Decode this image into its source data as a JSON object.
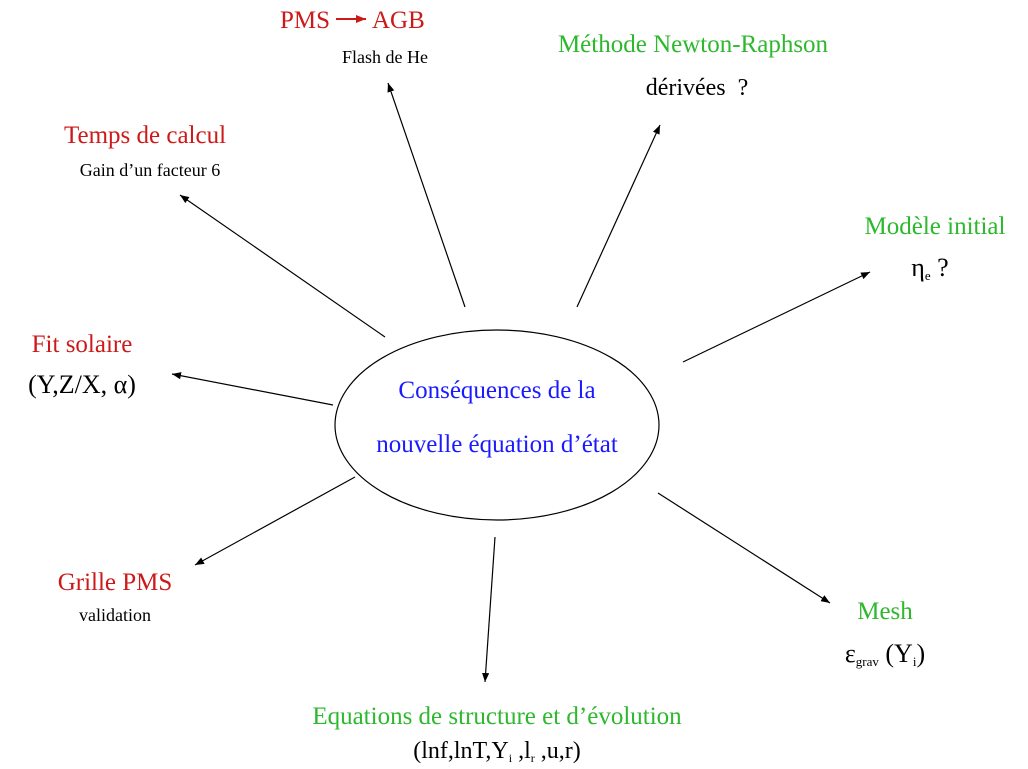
{
  "center": [
    "Conséquences de la",
    "nouvelle équation d’état"
  ],
  "nodes": [
    {
      "title": [
        "PMS",
        "AGB"
      ],
      "subtitle": [
        {
          "text": "Flash de He"
        }
      ]
    },
    {
      "title": [
        "Méthode Newton-Raphson"
      ],
      "subtitle": [
        {
          "text": "dérivées  ?"
        }
      ]
    },
    {
      "title": [
        "Temps de calcul"
      ],
      "subtitle": [
        {
          "text": "Gain d’un facteur 6"
        }
      ]
    },
    {
      "title": [
        "Modèle initial"
      ],
      "subtitle": [
        {
          "text": "η"
        },
        {
          "text": "e",
          "sub": true
        },
        {
          "text": " ?"
        }
      ]
    },
    {
      "title": [
        "Fit solaire"
      ],
      "subtitle": [
        {
          "text": "(Y,Z/X, α)"
        }
      ]
    },
    {
      "title": [
        "Grille PMS"
      ],
      "subtitle": [
        {
          "text": "validation"
        }
      ]
    },
    {
      "title": [
        "Mesh"
      ],
      "subtitle": [
        {
          "text": "ε"
        },
        {
          "text": "grav",
          "sub": true
        },
        {
          "text": " (Y"
        },
        {
          "text": "i",
          "sub": true
        },
        {
          "text": ")"
        }
      ]
    },
    {
      "title": [
        "Equations de structure et d’évolution"
      ],
      "subtitle": [
        {
          "text": "(lnf,lnT,Y"
        },
        {
          "text": "i",
          "sub": true
        },
        {
          "text": " ,l"
        },
        {
          "text": "r",
          "sub": true
        },
        {
          "text": " ,u,r)"
        }
      ]
    }
  ]
}
